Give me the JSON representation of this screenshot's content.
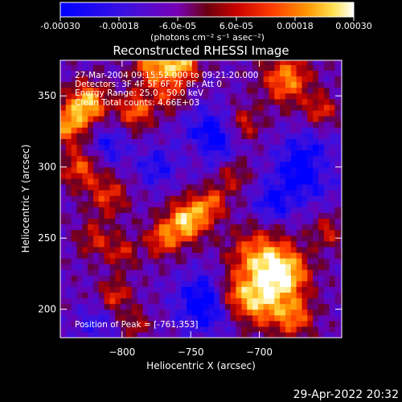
{
  "colorbar": {
    "ticks": [
      "-0.00030",
      "-0.00018",
      "-6.0e-05",
      "6.0e-05",
      "0.00018",
      "0.00030"
    ],
    "tick_values": [
      -0.0003,
      -0.00018,
      -6e-05,
      6e-05,
      0.00018,
      0.0003
    ],
    "range": [
      -0.0003,
      0.0003
    ],
    "units_label": "(photons cm⁻² s⁻¹ asec⁻²)",
    "colormap": [
      "#0000ff",
      "#5a00c8",
      "#9a0000",
      "#ff3000",
      "#ffb000",
      "#ffffff"
    ]
  },
  "chart_data": {
    "type": "heatmap",
    "title": "Reconstructed RHESSI Image",
    "xlabel": "Heliocentric X (arcsec)",
    "ylabel": "Heliocentric Y (arcsec)",
    "xlim": [
      -845,
      -640
    ],
    "ylim": [
      180,
      375
    ],
    "x_ticks": [
      -800,
      -750,
      -700
    ],
    "x_tick_labels": [
      "−800",
      "−750",
      "−700"
    ],
    "y_ticks": [
      200,
      250,
      300,
      350
    ],
    "y_tick_labels": [
      "200",
      "250",
      "300",
      "350"
    ],
    "annotations": [
      "27-Mar-2004 09:15:52.000 to 09:21:20.000",
      "Detectors: 3F 4F 5F 6F 7F 8F, Att 0",
      "Energy Range: 25.0 - 50.0 keV",
      "Clean     Total counts: 4.66E+03"
    ],
    "peak_label": "Position of Peak = [-761,353]",
    "peak": [
      -761,
      353
    ]
  },
  "footer": {
    "timestamp": "29-Apr-2022 20:32"
  }
}
